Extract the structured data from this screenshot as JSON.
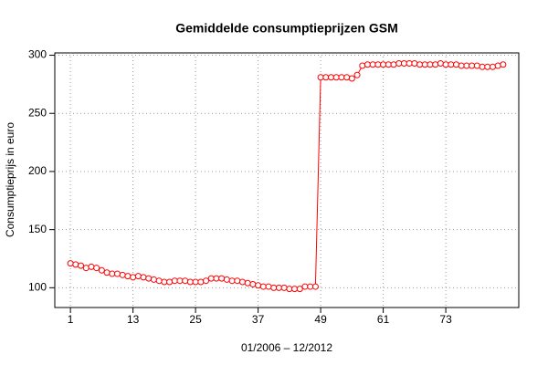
{
  "chart_data": {
    "type": "line",
    "title": "Gemiddelde consumptieprijzen GSM",
    "x_label": "01/2006 – 12/2012",
    "y_label": "Consumptieprijs in euro",
    "x": [
      1,
      2,
      3,
      4,
      5,
      6,
      7,
      8,
      9,
      10,
      11,
      12,
      13,
      14,
      15,
      16,
      17,
      18,
      19,
      20,
      21,
      22,
      23,
      24,
      25,
      26,
      27,
      28,
      29,
      30,
      31,
      32,
      33,
      34,
      35,
      36,
      37,
      38,
      39,
      40,
      41,
      42,
      43,
      44,
      45,
      46,
      47,
      48,
      49,
      50,
      51,
      52,
      53,
      54,
      55,
      56,
      57,
      58,
      59,
      60,
      61,
      62,
      63,
      64,
      65,
      66,
      67,
      68,
      69,
      70,
      71,
      72,
      73,
      74,
      75,
      76,
      77,
      78,
      79,
      80,
      81,
      82,
      83,
      84
    ],
    "series": [
      {
        "color": "#ff0000",
        "values": [
          121,
          120,
          119,
          117,
          118,
          117,
          115,
          113,
          112,
          112,
          111,
          110,
          109,
          110,
          109,
          108,
          107,
          106,
          105,
          105,
          106,
          106,
          106,
          105,
          105,
          105,
          106,
          108,
          108,
          108,
          107,
          106,
          106,
          105,
          104,
          103,
          102,
          101,
          101,
          100,
          100,
          100,
          99,
          99,
          99,
          101,
          101,
          101,
          281,
          281,
          281,
          281,
          281,
          281,
          280,
          283,
          291,
          292,
          292,
          292,
          292,
          292,
          292,
          293,
          293,
          293,
          293,
          292,
          292,
          292,
          292,
          293,
          292,
          292,
          292,
          291,
          291,
          291,
          291,
          290,
          290,
          290,
          291,
          292
        ]
      }
    ],
    "xlim": [
      -2,
      87
    ],
    "ylim": [
      83,
      302
    ],
    "xticks": [
      1,
      13,
      25,
      37,
      49,
      61,
      73
    ],
    "yticks": [
      100,
      150,
      200,
      250,
      300
    ],
    "grid": true
  }
}
